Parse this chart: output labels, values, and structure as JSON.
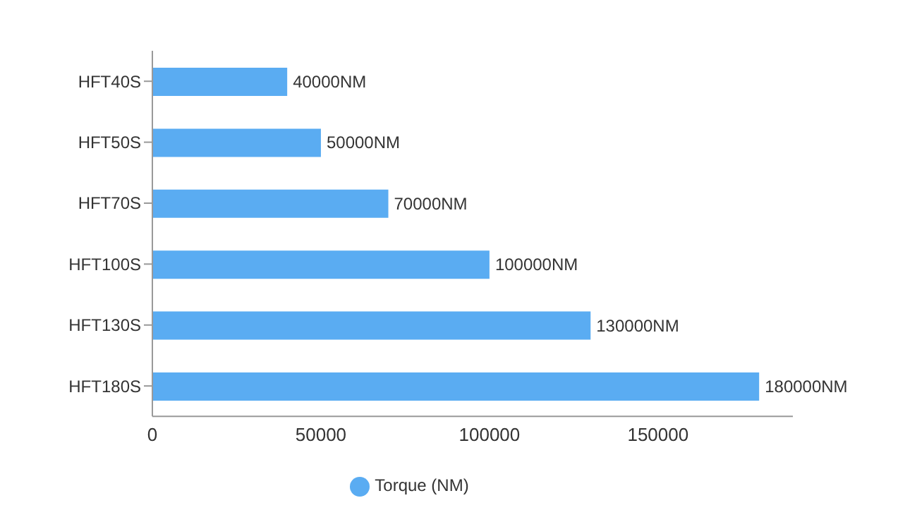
{
  "chart_data": {
    "type": "bar",
    "orientation": "horizontal",
    "categories": [
      "HFT40S",
      "HFT50S",
      "HFT70S",
      "HFT100S",
      "HFT130S",
      "HFT180S"
    ],
    "series": [
      {
        "name": "Torque (NM)",
        "color": "#5aacf2",
        "values": [
          40000,
          50000,
          70000,
          100000,
          130000,
          180000
        ],
        "value_labels": [
          "40000NM",
          "50000NM",
          "70000NM",
          "100000NM",
          "130000NM",
          "180000NM"
        ]
      }
    ],
    "xlim": [
      0,
      190000
    ],
    "xticks": [
      0,
      50000,
      100000,
      150000
    ],
    "grid": false,
    "legend": "bottom"
  }
}
